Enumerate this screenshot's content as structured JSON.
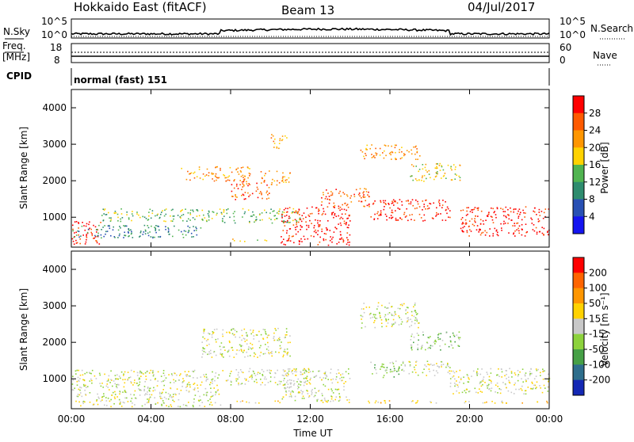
{
  "header": {
    "station": "Hokkaido East (fitACF)",
    "beam": "Beam 13",
    "date": "04/Jul/2017"
  },
  "noise_panel": {
    "left_label": "N.Sky",
    "tick_top": "10^5",
    "tick_bottom": "10^0",
    "right_label": "N.Search",
    "right_tick_top": "10^5",
    "right_tick_bottom": "10^0"
  },
  "freq_panel": {
    "left_label_line1": "Freq.",
    "left_label_line2": "[MHz]",
    "tick_top": "18",
    "tick_bottom": "8",
    "right_label": "Nave",
    "right_tick_top": "60",
    "right_tick_bottom": "0"
  },
  "cpid_panel": {
    "left_label": "CPID",
    "mode_text": "normal (fast) 151"
  },
  "chart_data": [
    {
      "type": "heatmap",
      "name": "power",
      "ylabel": "Slant Range [km]",
      "yticks": [
        "1000",
        "2000",
        "3000",
        "4000"
      ],
      "ylim": [
        180,
        4500
      ],
      "xlim_hours": [
        0,
        24
      ],
      "xticks": [
        "00:00",
        "04:00",
        "08:00",
        "12:00",
        "16:00",
        "20:00",
        "00:00"
      ],
      "colorbar_label": "Power [dB]",
      "colorbar_ticks": [
        "4",
        "8",
        "12",
        "16",
        "20",
        "24",
        "28"
      ],
      "colorbar_colors": [
        "#1414f0",
        "#2850b4",
        "#2e8c6e",
        "#50b450",
        "#ffd200",
        "#ff9600",
        "#ff5a00",
        "#ff0000"
      ],
      "scatter_bands": [
        {
          "t0": 0.0,
          "t1": 1.5,
          "r0": 250,
          "r1": 900,
          "level": 7
        },
        {
          "t0": 1.5,
          "t1": 7.5,
          "r0": 900,
          "r1": 1250,
          "level": 3
        },
        {
          "t0": 0.0,
          "t1": 6.5,
          "r0": 450,
          "r1": 800,
          "level": 2
        },
        {
          "t0": 7.5,
          "t1": 11.5,
          "r0": 850,
          "r1": 1250,
          "level": 3
        },
        {
          "t0": 8.0,
          "t1": 10.0,
          "r0": 1500,
          "r1": 2000,
          "level": 6
        },
        {
          "t0": 9.5,
          "t1": 11.0,
          "r0": 1900,
          "r1": 2300,
          "level": 5
        },
        {
          "t0": 10.0,
          "t1": 10.8,
          "r0": 2900,
          "r1": 3300,
          "level": 5
        },
        {
          "t0": 10.5,
          "t1": 14.0,
          "r0": 250,
          "r1": 1300,
          "level": 7
        },
        {
          "t0": 5.5,
          "t1": 9.0,
          "r0": 2000,
          "r1": 2400,
          "level": 5
        },
        {
          "t0": 12.5,
          "t1": 15.0,
          "r0": 1300,
          "r1": 1800,
          "level": 6
        },
        {
          "t0": 14.5,
          "t1": 17.5,
          "r0": 2600,
          "r1": 3000,
          "level": 5
        },
        {
          "t0": 15.0,
          "t1": 19.0,
          "r0": 900,
          "r1": 1500,
          "level": 7
        },
        {
          "t0": 17.0,
          "t1": 19.5,
          "r0": 2000,
          "r1": 2500,
          "level": 4
        },
        {
          "t0": 19.5,
          "t1": 24.0,
          "r0": 500,
          "r1": 1300,
          "level": 7
        },
        {
          "t0": 8.0,
          "t1": 9.8,
          "r0": 350,
          "r1": 420,
          "level": 4
        }
      ]
    },
    {
      "type": "heatmap",
      "name": "velocity",
      "ylabel": "Slant Range [km]",
      "yticks": [
        "1000",
        "2000",
        "3000",
        "4000"
      ],
      "ylim": [
        180,
        4500
      ],
      "xlim_hours": [
        0,
        24
      ],
      "xticks": [
        "00:00",
        "04:00",
        "08:00",
        "12:00",
        "16:00",
        "20:00",
        "00:00"
      ],
      "xlabel": "Time UT",
      "colorbar_label": "Velocity [m s⁻¹]",
      "colorbar_ticks": [
        "200",
        "100",
        "50",
        "15",
        "-15",
        "-50",
        "-100",
        "-200"
      ],
      "colorbar_colors": [
        "#1428b4",
        "#2e6e8c",
        "#46a046",
        "#8cd23c",
        "#c8c8c8",
        "#ffd200",
        "#ff9600",
        "#ff6400",
        "#ff0000"
      ],
      "scatter_bands": [
        {
          "t0": 0.0,
          "t1": 7.5,
          "r0": 250,
          "r1": 1250,
          "level": 4
        },
        {
          "t0": 7.5,
          "t1": 12.0,
          "r0": 850,
          "r1": 1300,
          "level": 4
        },
        {
          "t0": 6.5,
          "t1": 11.0,
          "r0": 1600,
          "r1": 2400,
          "level": 4
        },
        {
          "t0": 10.5,
          "t1": 14.0,
          "r0": 400,
          "r1": 1300,
          "level": 4
        },
        {
          "t0": 14.5,
          "t1": 17.5,
          "r0": 2400,
          "r1": 3100,
          "level": 4
        },
        {
          "t0": 15.0,
          "t1": 16.5,
          "r0": 1050,
          "r1": 1500,
          "level": 3
        },
        {
          "t0": 16.5,
          "t1": 19.0,
          "r0": 1100,
          "r1": 1500,
          "level": 4
        },
        {
          "t0": 19.0,
          "t1": 24.0,
          "r0": 600,
          "r1": 1300,
          "level": 4
        },
        {
          "t0": 17.0,
          "t1": 19.5,
          "r0": 1800,
          "r1": 2300,
          "level": 3
        },
        {
          "t0": 8.0,
          "t1": 10.5,
          "r0": 350,
          "r1": 420,
          "level": 5
        },
        {
          "t0": 12.5,
          "t1": 24.0,
          "r0": 350,
          "r1": 420,
          "level": 5
        }
      ]
    }
  ]
}
